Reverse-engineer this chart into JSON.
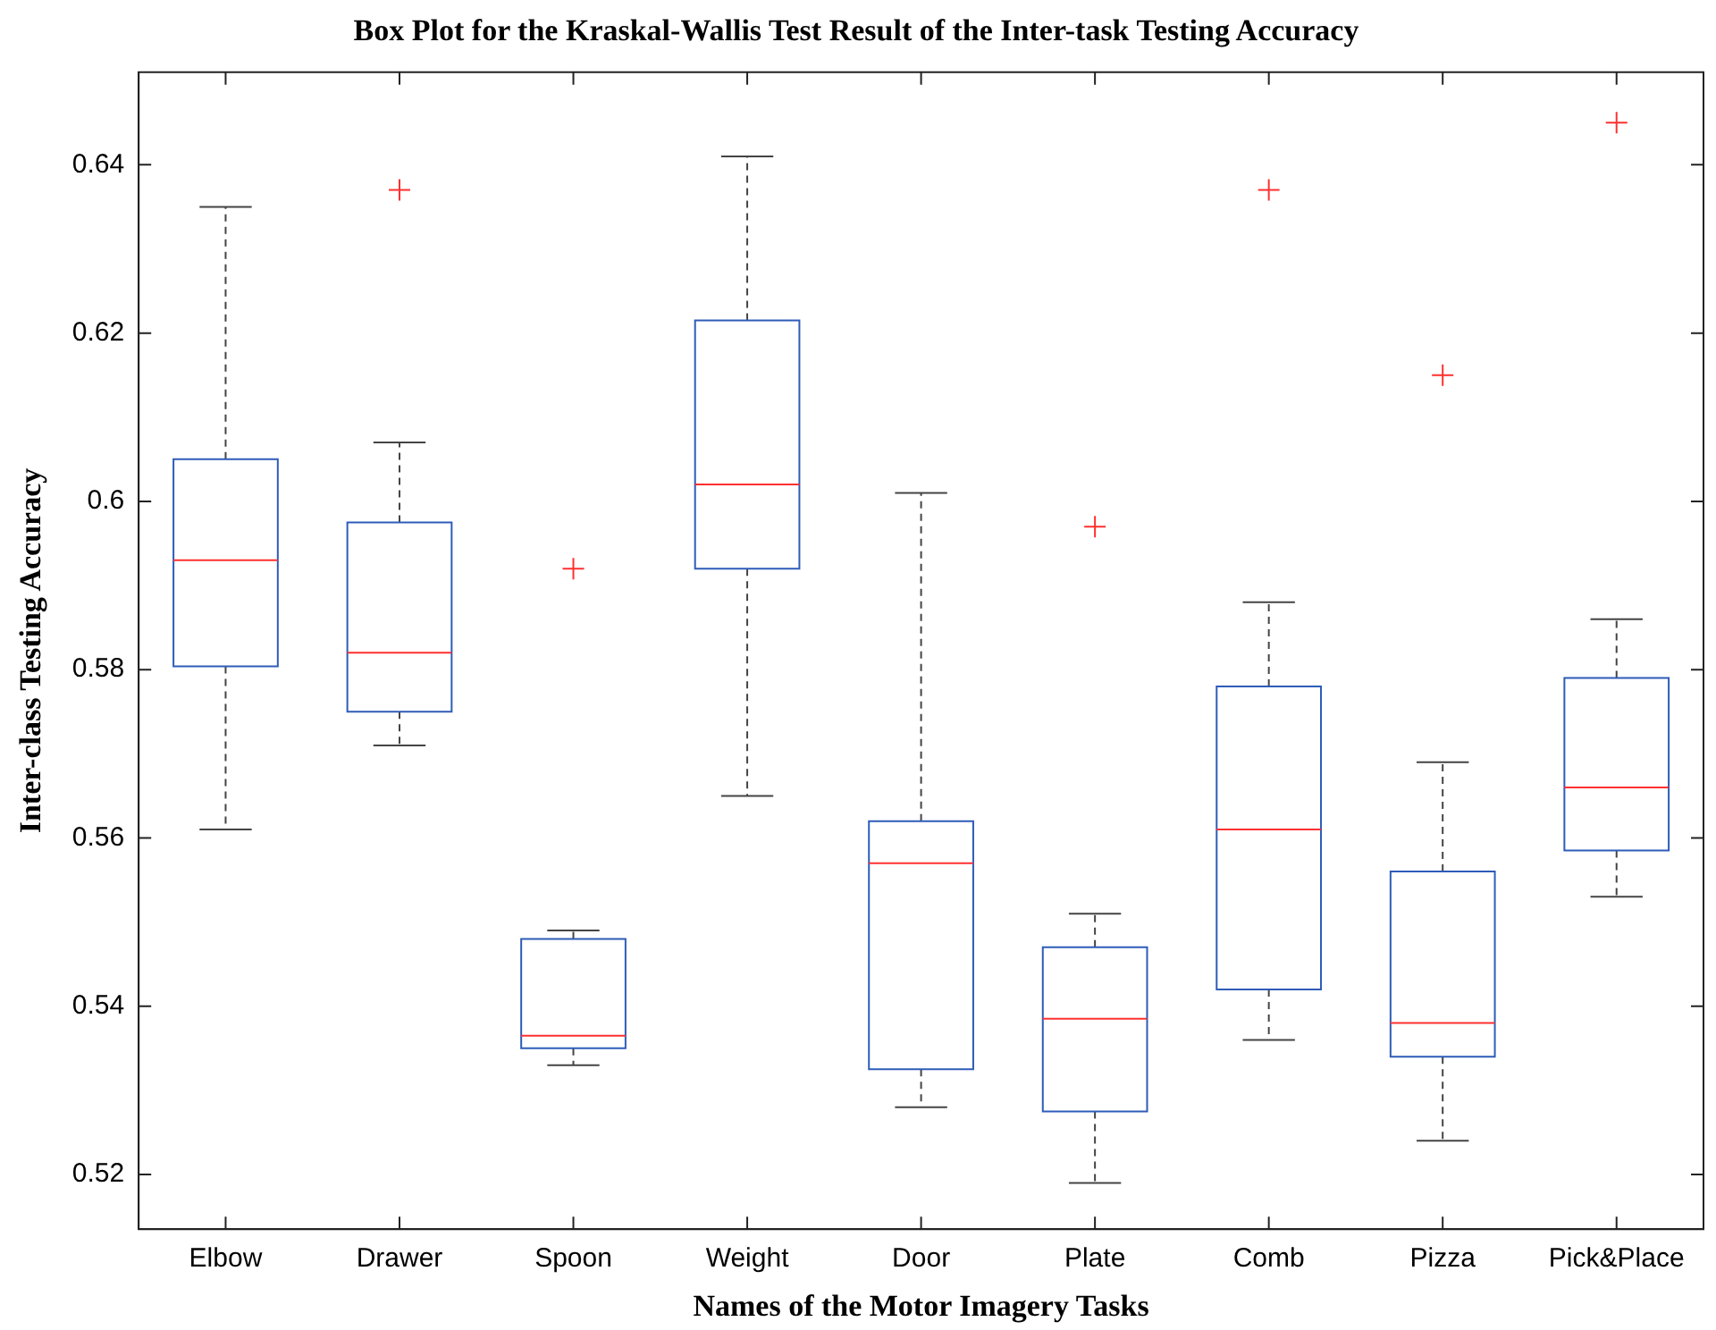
{
  "chart_data": {
    "type": "box",
    "title": "Box Plot for the Kraskal-Wallis Test Result of the Inter-task Testing Accuracy",
    "xlabel": "Names of the Motor Imagery Tasks",
    "ylabel": "Inter-class Testing Accuracy",
    "categories": [
      "Elbow",
      "Drawer",
      "Spoon",
      "Weight",
      "Door",
      "Plate",
      "Comb",
      "Pizza",
      "Pick&Place"
    ],
    "series": [
      {
        "color": "#2e5cb8",
        "boxes": [
          {
            "low": 0.561,
            "q1": 0.5804,
            "median": 0.593,
            "q3": 0.605,
            "high": 0.635
          },
          {
            "low": 0.571,
            "q1": 0.575,
            "median": 0.582,
            "q3": 0.5975,
            "high": 0.607,
            "outliers": [
              0.637
            ]
          },
          {
            "low": 0.533,
            "q1": 0.535,
            "median": 0.5365,
            "q3": 0.548,
            "high": 0.549,
            "outliers": [
              0.592
            ]
          },
          {
            "low": 0.565,
            "q1": 0.592,
            "median": 0.602,
            "q3": 0.6215,
            "high": 0.641
          },
          {
            "low": 0.528,
            "q1": 0.5325,
            "median": 0.557,
            "q3": 0.562,
            "high": 0.601
          },
          {
            "low": 0.519,
            "q1": 0.5275,
            "median": 0.5385,
            "q3": 0.547,
            "high": 0.551,
            "outliers": [
              0.597
            ]
          },
          {
            "low": 0.536,
            "q1": 0.542,
            "median": 0.561,
            "q3": 0.578,
            "high": 0.588,
            "outliers": [
              0.637
            ]
          },
          {
            "low": 0.524,
            "q1": 0.534,
            "median": 0.538,
            "q3": 0.556,
            "high": 0.569,
            "outliers": [
              0.615
            ]
          },
          {
            "low": 0.553,
            "q1": 0.5585,
            "median": 0.566,
            "q3": 0.579,
            "high": 0.586,
            "outliers": [
              0.645
            ]
          }
        ]
      }
    ],
    "ylim": [
      0.5135,
      0.651
    ],
    "yticks": [
      0.52,
      0.54,
      0.56,
      0.58,
      0.6,
      0.62,
      0.64
    ],
    "grid": false,
    "legend": false,
    "marker": "cross"
  }
}
